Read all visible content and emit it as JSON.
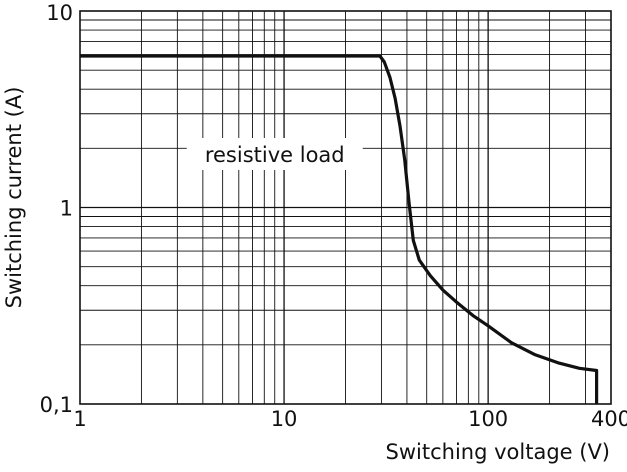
{
  "chart_data": {
    "type": "line",
    "title": "",
    "xlabel": "Switching voltage (V)",
    "ylabel": "Switching current (A)",
    "xscale": "log",
    "yscale": "log",
    "xlim": [
      1,
      400
    ],
    "ylim": [
      0.1,
      10
    ],
    "grid": true,
    "xticks": [
      {
        "value": 1,
        "label": "1"
      },
      {
        "value": 10,
        "label": "10"
      },
      {
        "value": 100,
        "label": "100"
      },
      {
        "value": 400,
        "label": "400"
      }
    ],
    "yticks": [
      {
        "value": 0.1,
        "label": "0,1"
      },
      {
        "value": 1,
        "label": "1"
      },
      {
        "value": 10,
        "label": "10"
      }
    ],
    "annotations": [
      {
        "text": "resistive load",
        "x": 9,
        "y": 1.85
      }
    ],
    "series": [
      {
        "name": "",
        "color": "#111111",
        "points": [
          [
            1,
            5.9
          ],
          [
            29.5,
            5.9
          ],
          [
            31,
            5.5
          ],
          [
            33,
            4.6
          ],
          [
            35,
            3.6
          ],
          [
            37,
            2.6
          ],
          [
            39,
            1.75
          ],
          [
            41,
            1.05
          ],
          [
            43,
            0.68
          ],
          [
            46,
            0.54
          ],
          [
            52,
            0.45
          ],
          [
            60,
            0.38
          ],
          [
            70,
            0.33
          ],
          [
            85,
            0.28
          ],
          [
            100,
            0.25
          ],
          [
            130,
            0.205
          ],
          [
            170,
            0.178
          ],
          [
            220,
            0.162
          ],
          [
            280,
            0.152
          ],
          [
            340,
            0.148
          ],
          [
            340,
            0.1
          ]
        ]
      }
    ]
  }
}
